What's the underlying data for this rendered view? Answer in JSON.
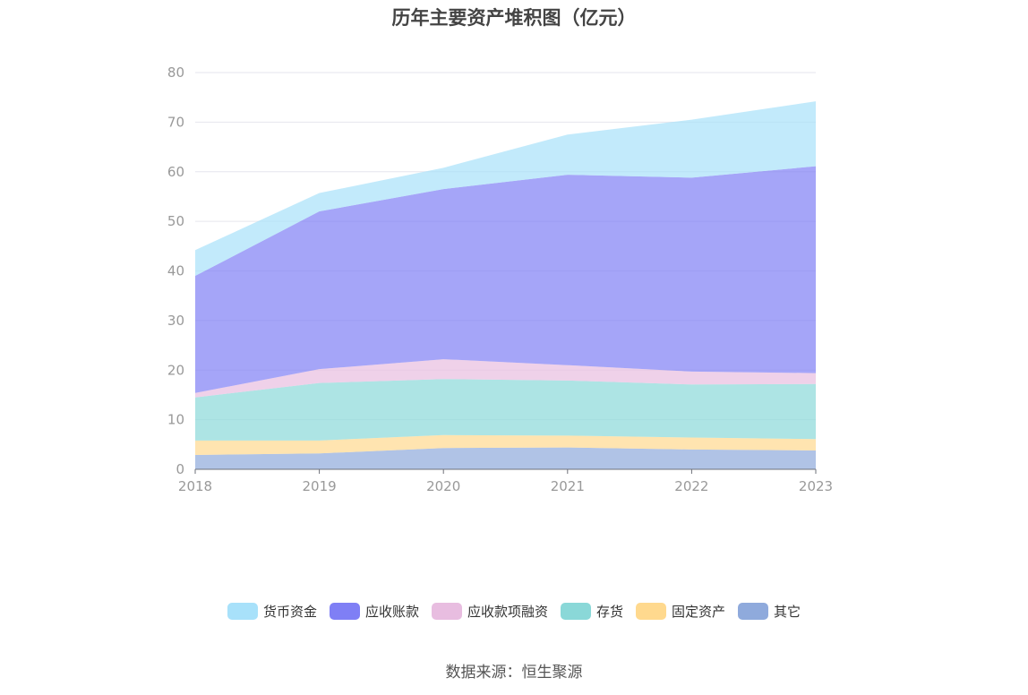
{
  "chart_data": {
    "type": "area",
    "stacked": true,
    "title": "历年主要资产堆积图（亿元）",
    "x": [
      "2018",
      "2019",
      "2020",
      "2021",
      "2022",
      "2023"
    ],
    "ylim": [
      0,
      80
    ],
    "yticks": [
      0,
      10,
      20,
      30,
      40,
      50,
      60,
      70,
      80
    ],
    "grid": true,
    "legend_position": "bottom",
    "series": [
      {
        "name": "其它",
        "color": "#8FAADC",
        "values": [
          2.9,
          3.2,
          4.3,
          4.4,
          4.0,
          3.8
        ]
      },
      {
        "name": "固定资产",
        "color": "#FFD98E",
        "values": [
          2.9,
          2.6,
          2.6,
          2.4,
          2.4,
          2.3
        ]
      },
      {
        "name": "存货",
        "color": "#8AD8D8",
        "values": [
          8.7,
          11.6,
          11.3,
          11.1,
          10.7,
          11.1
        ]
      },
      {
        "name": "应收款项融资",
        "color": "#E8BDE0",
        "values": [
          0.9,
          2.8,
          4.0,
          3.1,
          2.6,
          2.2
        ]
      },
      {
        "name": "应收账款",
        "color": "#7F7FF5",
        "values": [
          23.6,
          31.8,
          34.3,
          38.4,
          39.1,
          41.7
        ]
      },
      {
        "name": "货币资金",
        "color": "#A8E1FA",
        "values": [
          5.2,
          3.7,
          4.3,
          8.1,
          11.7,
          13.1
        ]
      }
    ],
    "legend_order": [
      "货币资金",
      "应收账款",
      "应收款项融资",
      "存货",
      "固定资产",
      "其它"
    ]
  },
  "source": "数据来源：恒生聚源"
}
